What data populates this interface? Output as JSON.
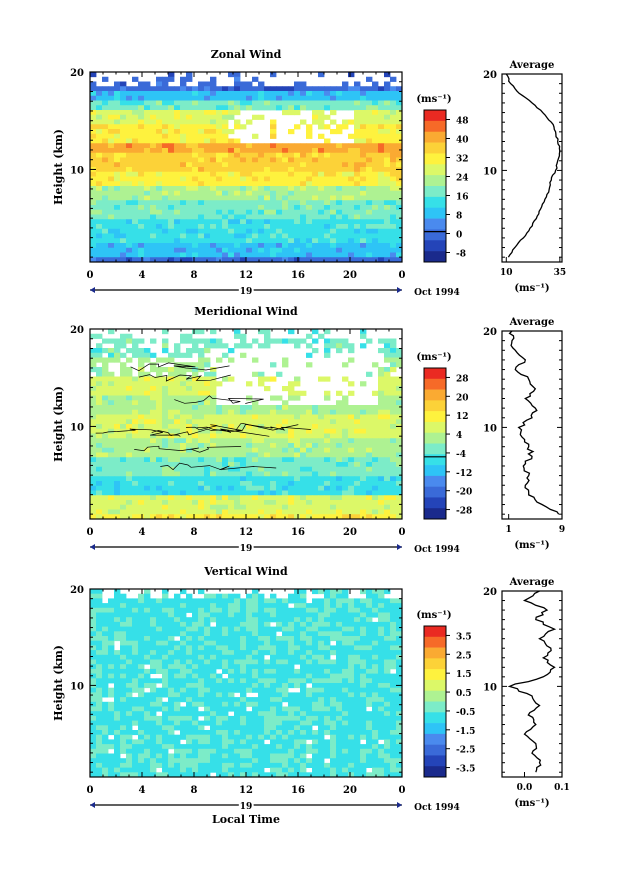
{
  "colors": {
    "palette": [
      "#1a2a8c",
      "#2444b8",
      "#3a6ad8",
      "#4a8aee",
      "#2ec4f6",
      "#36e0e8",
      "#7cecc8",
      "#aef292",
      "#dcf868",
      "#fef23e",
      "#fcd238",
      "#faaa32",
      "#f66a28",
      "#ea2a22"
    ]
  },
  "chart_data": [
    {
      "type": "heatmap",
      "title": "Zonal Wind",
      "xlabel": "",
      "ylabel": "Height (km)",
      "x_ticks": [
        "0",
        "4",
        "8",
        "12",
        "16",
        "20",
        "0"
      ],
      "x_range_hours": [
        0,
        24
      ],
      "y_ticks": [
        "10",
        "20"
      ],
      "ylim": [
        0.5,
        20
      ],
      "date_day": "19",
      "date_label": "Oct 1994",
      "colorbar": {
        "unit": "(ms⁻¹)",
        "levels": [
          "48",
          "40",
          "32",
          "24",
          "16",
          "8",
          "0",
          "-8"
        ],
        "zero_line": true
      },
      "profile": {
        "title": "Average",
        "x_ticks": [
          "10",
          "35"
        ],
        "xlim": [
          8,
          36
        ],
        "unit": "(ms⁻¹)",
        "y_ticks": [
          "10",
          "20"
        ],
        "heights_km": [
          1,
          2,
          3,
          4,
          5,
          6,
          7,
          8,
          9,
          10,
          11,
          12,
          13,
          14,
          15,
          16,
          17,
          18,
          19,
          20
        ],
        "values": [
          11,
          14,
          18,
          21,
          24,
          26,
          28,
          30,
          31,
          33,
          34,
          35,
          34,
          33,
          31,
          27,
          22,
          16,
          12,
          10
        ]
      }
    },
    {
      "type": "heatmap",
      "title": "Meridional Wind",
      "xlabel": "",
      "ylabel": "Height (km)",
      "x_ticks": [
        "0",
        "4",
        "8",
        "12",
        "16",
        "20",
        "0"
      ],
      "x_range_hours": [
        0,
        24
      ],
      "y_ticks": [
        "10",
        "20"
      ],
      "ylim": [
        0.5,
        20
      ],
      "date_day": "19",
      "date_label": "Oct 1994",
      "colorbar": {
        "unit": "(ms⁻¹)",
        "levels": [
          "28",
          "20",
          "12",
          "4",
          "-4",
          "-12",
          "-20",
          "-28"
        ],
        "zero_line": true
      },
      "profile": {
        "title": "Average",
        "x_ticks": [
          "1",
          "9"
        ],
        "xlim": [
          0,
          9
        ],
        "unit": "(ms⁻¹)",
        "y_ticks": [
          "10",
          "20"
        ],
        "heights_km": [
          1,
          2,
          3,
          4,
          5,
          6,
          7,
          8,
          9,
          10,
          11,
          12,
          13,
          14,
          15,
          16,
          17,
          18,
          19,
          20
        ],
        "values": [
          8.5,
          6,
          4,
          3.5,
          4,
          3.2,
          4.5,
          4,
          3,
          2.5,
          4.5,
          5,
          3.5,
          5,
          4,
          2,
          3.5,
          2,
          1.5,
          1.5
        ]
      }
    },
    {
      "type": "heatmap",
      "title": "Vertical Wind",
      "xlabel": "Local Time",
      "ylabel": "Height (km)",
      "x_ticks": [
        "0",
        "4",
        "8",
        "12",
        "16",
        "20",
        "0"
      ],
      "x_range_hours": [
        0,
        24
      ],
      "y_ticks": [
        "10",
        "20"
      ],
      "ylim": [
        0.5,
        20
      ],
      "date_day": "19",
      "date_label": "Oct 1994",
      "colorbar": {
        "unit": "(ms⁻¹)",
        "levels": [
          "3.5",
          "2.5",
          "1.5",
          "0.5",
          "-0.5",
          "-1.5",
          "-2.5",
          "-3.5"
        ],
        "zero_line": false
      },
      "profile": {
        "title": "Average",
        "x_ticks": [
          "0.0",
          "0.1"
        ],
        "xlim": [
          -0.06,
          0.1
        ],
        "unit": "(ms⁻¹)",
        "y_ticks": [
          "10",
          "20"
        ],
        "heights_km": [
          1,
          2,
          3,
          4,
          5,
          6,
          7,
          8,
          9,
          10,
          11,
          12,
          13,
          14,
          15,
          16,
          17,
          18,
          19,
          20
        ],
        "values": [
          0.03,
          0.04,
          0.02,
          0.03,
          0.0,
          0.03,
          0.01,
          0.04,
          0.02,
          -0.04,
          0.05,
          0.08,
          0.05,
          0.07,
          0.04,
          0.08,
          0.03,
          0.06,
          0.0,
          0.04
        ]
      }
    }
  ]
}
